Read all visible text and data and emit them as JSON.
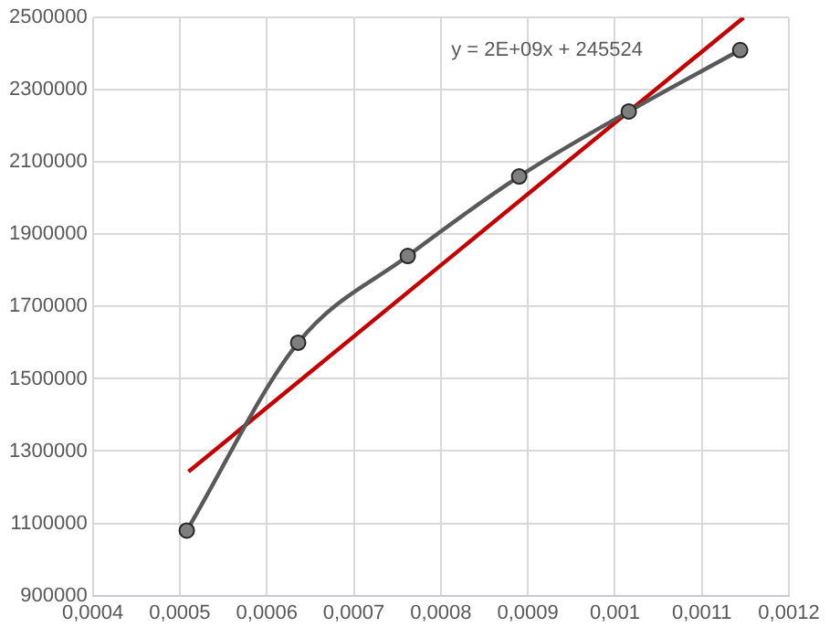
{
  "chart_data": {
    "type": "line",
    "series": [
      {
        "color": "#595959",
        "marker": "circle",
        "x": [
          0.000508,
          0.000636,
          0.000762,
          0.00089,
          0.001016,
          0.001144
        ],
        "values": [
          1080000,
          1600000,
          1840000,
          2060000,
          2240000,
          2410000
        ]
      },
      {
        "color": "#c00000",
        "marker": "none",
        "x": [
          0.00051,
          0.001148
        ],
        "values": [
          1243000,
          2500000
        ]
      }
    ],
    "xlim": [
      0.0004,
      0.0012
    ],
    "xticks": [
      {
        "value": 0.0004,
        "label": "0,0004"
      },
      {
        "value": 0.0005,
        "label": "0,0005"
      },
      {
        "value": 0.0006,
        "label": "0,0006"
      },
      {
        "value": 0.0007,
        "label": "0,0007"
      },
      {
        "value": 0.0008,
        "label": "0,0008"
      },
      {
        "value": 0.0009,
        "label": "0,0009"
      },
      {
        "value": 0.001,
        "label": "0,001"
      },
      {
        "value": 0.0011,
        "label": "0,0011"
      },
      {
        "value": 0.0012,
        "label": "0,0012"
      }
    ],
    "ylim": [
      900000,
      2500000
    ],
    "yticks": [
      900000,
      1100000,
      1300000,
      1500000,
      1700000,
      1900000,
      2100000,
      2300000,
      2500000
    ],
    "grid": true,
    "legend": false,
    "annotations": [
      "y = 2E+09x + 245524"
    ]
  }
}
